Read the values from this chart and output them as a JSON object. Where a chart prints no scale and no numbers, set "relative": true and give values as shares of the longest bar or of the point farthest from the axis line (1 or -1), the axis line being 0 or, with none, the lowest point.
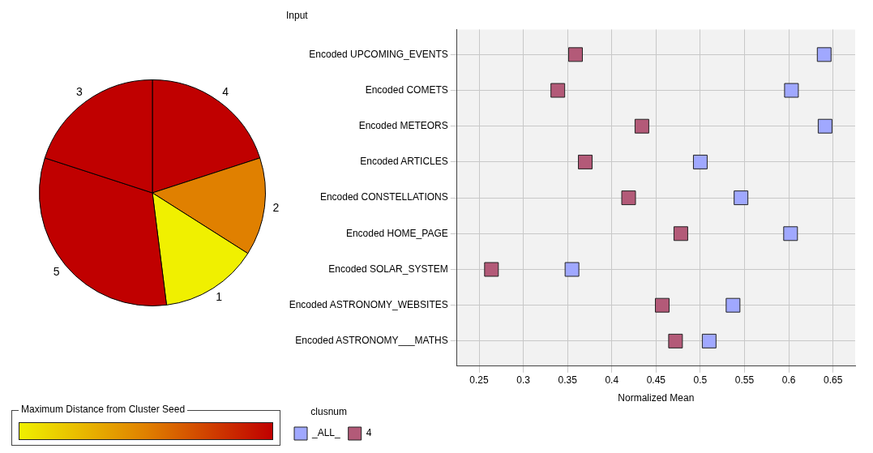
{
  "chart_data": [
    {
      "type": "pie",
      "relative": true,
      "categories": [
        "4",
        "2",
        "1",
        "5",
        "3"
      ],
      "values": [
        20,
        14,
        14,
        32,
        20
      ],
      "colors": [
        "#c00000",
        "#e08000",
        "#f0f000",
        "#c00000",
        "#c00000"
      ],
      "clabel": "Maximum Distance from Cluster Seed"
    },
    {
      "type": "scatter",
      "title": "Input",
      "xlabel": "Normalized Mean",
      "legend_title": "clusnum",
      "legend": "bottom",
      "grid": true,
      "marker": "square",
      "orientation": "horizontal",
      "categories": [
        "Encoded UPCOMING_EVENTS",
        "Encoded COMETS",
        "Encoded METEORS",
        "Encoded ARTICLES",
        "Encoded CONSTELLATIONS",
        "Encoded HOME_PAGE",
        "Encoded SOLAR_SYSTEM",
        "Encoded ASTRONOMY_WEBSITES",
        "Encoded ASTRONOMY___MATHS"
      ],
      "xlim": [
        0.225,
        0.675
      ],
      "xticks": [
        0.25,
        0.3,
        0.35,
        0.4,
        0.45,
        0.5,
        0.55,
        0.6,
        0.65
      ],
      "series": [
        {
          "name": "_ALL_",
          "color": "#a0a8ff",
          "values": [
            0.64,
            0.603,
            0.641,
            0.5,
            0.546,
            0.602,
            0.355,
            0.537,
            0.51
          ]
        },
        {
          "name": "4",
          "color": "#b35a78",
          "values": [
            0.359,
            0.339,
            0.434,
            0.37,
            0.419,
            0.478,
            0.264,
            0.457,
            0.472
          ]
        }
      ]
    }
  ]
}
